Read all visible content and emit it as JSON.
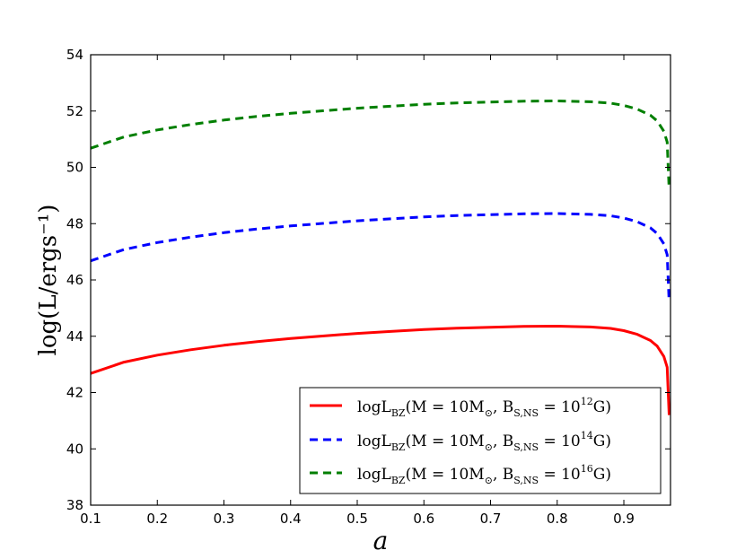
{
  "chart_data": {
    "type": "line",
    "xlabel": "a",
    "ylabel": "log(L/ergs⁻¹)",
    "xlim": [
      0.1,
      0.97
    ],
    "ylim": [
      38,
      54
    ],
    "xticks": [
      0.1,
      0.2,
      0.3,
      0.4,
      0.5,
      0.6,
      0.7,
      0.8,
      0.9
    ],
    "yticks": [
      38,
      40,
      42,
      44,
      46,
      48,
      50,
      52,
      54
    ],
    "legend_position": "bottom-right",
    "grid": false,
    "series": [
      {
        "name": "logL_BZ(M = 10M_⊙, B_S,NS = 10^12 G)",
        "legend": {
          "main": "logL",
          "sub1": "BZ",
          "mid": "(M = 10M",
          "odot": "⊙",
          "mid2": ", B",
          "sub2": "S,NS",
          "mid3": " = 10",
          "sup": "12",
          "tail": "G)"
        },
        "color": "#ff0000",
        "style": "solid",
        "x": [
          0.1,
          0.15,
          0.2,
          0.25,
          0.3,
          0.35,
          0.4,
          0.45,
          0.5,
          0.55,
          0.6,
          0.65,
          0.7,
          0.75,
          0.8,
          0.85,
          0.88,
          0.9,
          0.92,
          0.94,
          0.95,
          0.96,
          0.965,
          0.968
        ],
        "y": [
          42.68,
          43.08,
          43.33,
          43.52,
          43.68,
          43.81,
          43.92,
          44.01,
          44.1,
          44.17,
          44.24,
          44.29,
          44.32,
          44.35,
          44.36,
          44.33,
          44.28,
          44.2,
          44.07,
          43.85,
          43.65,
          43.28,
          42.9,
          41.2
        ]
      },
      {
        "name": "logL_BZ(M = 10M_⊙, B_S,NS = 10^14 G)",
        "legend": {
          "main": "logL",
          "sub1": "BZ",
          "mid": "(M = 10M",
          "odot": "⊙",
          "mid2": ", B",
          "sub2": "S,NS",
          "mid3": " = 10",
          "sup": "14",
          "tail": "G)"
        },
        "color": "#0000ff",
        "style": "dashed",
        "x": [
          0.1,
          0.15,
          0.2,
          0.25,
          0.3,
          0.35,
          0.4,
          0.45,
          0.5,
          0.55,
          0.6,
          0.65,
          0.7,
          0.75,
          0.8,
          0.85,
          0.88,
          0.9,
          0.92,
          0.94,
          0.95,
          0.96,
          0.965,
          0.968
        ],
        "y": [
          46.68,
          47.08,
          47.33,
          47.52,
          47.68,
          47.81,
          47.92,
          48.01,
          48.1,
          48.17,
          48.24,
          48.29,
          48.32,
          48.35,
          48.36,
          48.33,
          48.28,
          48.2,
          48.07,
          47.85,
          47.65,
          47.28,
          46.9,
          45.2
        ]
      },
      {
        "name": "logL_BZ(M = 10M_⊙, B_S,NS = 10^16 G)",
        "legend": {
          "main": "logL",
          "sub1": "BZ",
          "mid": "(M = 10M",
          "odot": "⊙",
          "mid2": ", B",
          "sub2": "S,NS",
          "mid3": " = 10",
          "sup": "16",
          "tail": "G)"
        },
        "color": "#007f00",
        "style": "dashed",
        "x": [
          0.1,
          0.15,
          0.2,
          0.25,
          0.3,
          0.35,
          0.4,
          0.45,
          0.5,
          0.55,
          0.6,
          0.65,
          0.7,
          0.75,
          0.8,
          0.85,
          0.88,
          0.9,
          0.92,
          0.94,
          0.95,
          0.96,
          0.965,
          0.968
        ],
        "y": [
          50.68,
          51.08,
          51.33,
          51.52,
          51.68,
          51.81,
          51.92,
          52.01,
          52.1,
          52.17,
          52.24,
          52.29,
          52.32,
          52.35,
          52.36,
          52.33,
          52.28,
          52.2,
          52.07,
          51.85,
          51.65,
          51.28,
          50.9,
          49.2
        ]
      }
    ]
  }
}
